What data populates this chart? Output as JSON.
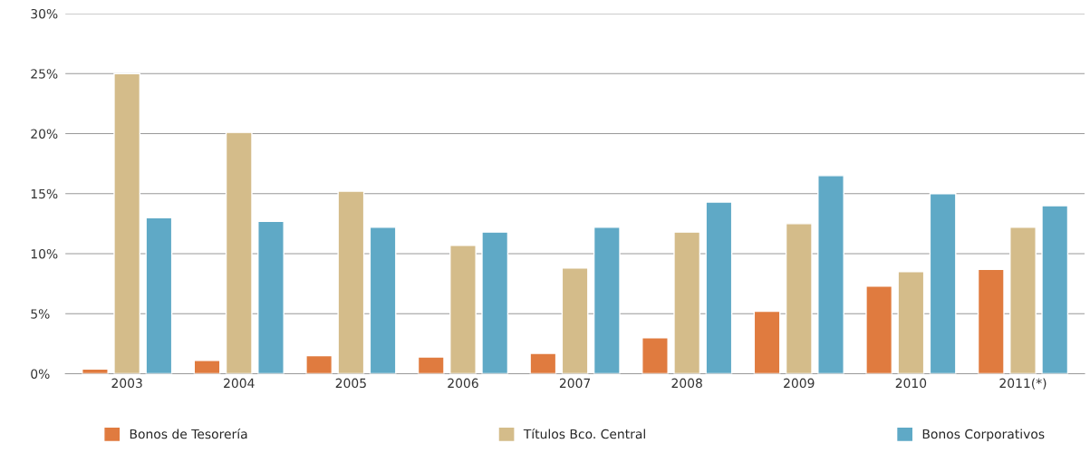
{
  "chart_data": {
    "type": "bar",
    "categories": [
      "2003",
      "2004",
      "2005",
      "2006",
      "2007",
      "2008",
      "2009",
      "2010",
      "2011(*)"
    ],
    "series": [
      {
        "name": "Bonos de Tesorería",
        "color": "#e07b3f",
        "values": [
          0.4,
          1.1,
          1.5,
          1.4,
          1.7,
          3.0,
          5.2,
          7.3,
          8.7
        ]
      },
      {
        "name": "Títulos Bco. Central",
        "color": "#d4bc8a",
        "values": [
          25.0,
          20.1,
          15.2,
          10.7,
          8.8,
          11.8,
          12.5,
          8.5,
          12.2
        ]
      },
      {
        "name": "Bonos Corporativos",
        "color": "#5fa9c6",
        "values": [
          13.0,
          12.7,
          12.2,
          11.8,
          12.2,
          14.3,
          16.5,
          15.0,
          14.0
        ]
      }
    ],
    "ylim": [
      0,
      30
    ],
    "yticks": [
      {
        "value": 0,
        "label": "0%"
      },
      {
        "value": 5,
        "label": "5%"
      },
      {
        "value": 10,
        "label": "10%"
      },
      {
        "value": 15,
        "label": "15%"
      },
      {
        "value": 20,
        "label": "20%"
      },
      {
        "value": 25,
        "label": "25%"
      },
      {
        "value": 30,
        "label": "30%"
      }
    ],
    "grid": "y",
    "legend": "bottom"
  }
}
